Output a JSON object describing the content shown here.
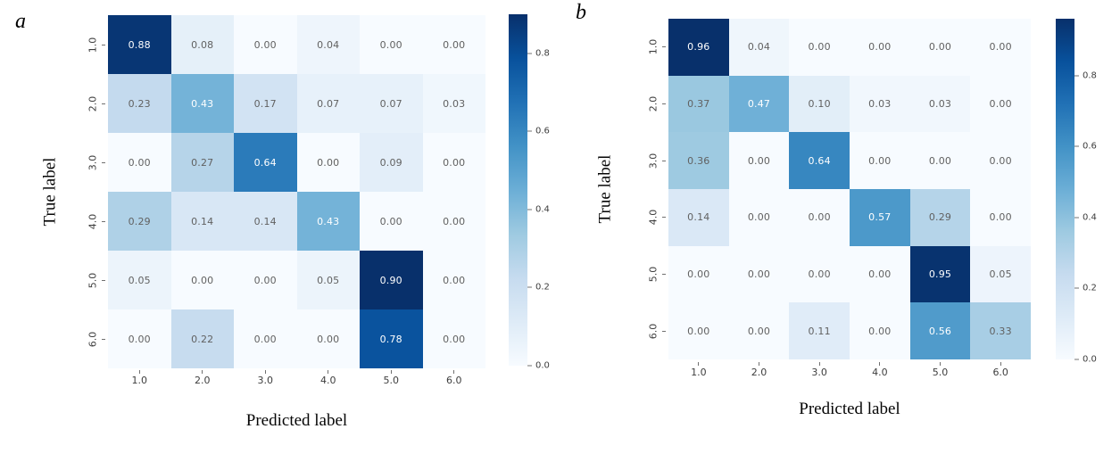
{
  "figure_title": "",
  "colors": {
    "cmap_name": "Blues",
    "cmap_stops": [
      "#f7fbff",
      "#deebf7",
      "#c6dbef",
      "#9ecae1",
      "#6baed6",
      "#4292c6",
      "#2171b5",
      "#08519c",
      "#08306b"
    ],
    "annotation_dark_text": "#616161",
    "annotation_light_text": "#ffffff",
    "tick_text": "#3d3d3d",
    "axis_title_text": "#050505"
  },
  "chart_data": [
    {
      "type": "heatmap",
      "panel_label": "a",
      "xlabel": "Predicted label",
      "ylabel": "True label",
      "x_tick_labels": [
        "1.0",
        "2.0",
        "3.0",
        "4.0",
        "5.0",
        "6.0"
      ],
      "y_tick_labels": [
        "1.0",
        "2.0",
        "3.0",
        "4.0",
        "5.0",
        "6.0"
      ],
      "matrix": [
        [
          0.88,
          0.08,
          0.0,
          0.04,
          0.0,
          0.0
        ],
        [
          0.23,
          0.43,
          0.17,
          0.07,
          0.07,
          0.03
        ],
        [
          0.0,
          0.27,
          0.64,
          0.0,
          0.09,
          0.0
        ],
        [
          0.29,
          0.14,
          0.14,
          0.43,
          0.0,
          0.0
        ],
        [
          0.05,
          0.0,
          0.0,
          0.05,
          0.9,
          0.0
        ],
        [
          0.0,
          0.22,
          0.0,
          0.0,
          0.78,
          0.0
        ]
      ],
      "vmin": 0.0,
      "vmax": 0.9,
      "colorbar_ticks": [
        0.8,
        0.6,
        0.4,
        0.2,
        0.0
      ],
      "legend_position": "right-colorbar",
      "grid": false
    },
    {
      "type": "heatmap",
      "panel_label": "b",
      "xlabel": "Predicted label",
      "ylabel": "True label",
      "x_tick_labels": [
        "1.0",
        "2.0",
        "3.0",
        "4.0",
        "5.0",
        "6.0"
      ],
      "y_tick_labels": [
        "1.0",
        "2.0",
        "3.0",
        "4.0",
        "5.0",
        "6.0"
      ],
      "matrix": [
        [
          0.96,
          0.04,
          0.0,
          0.0,
          0.0,
          0.0
        ],
        [
          0.37,
          0.47,
          0.1,
          0.03,
          0.03,
          0.0
        ],
        [
          0.36,
          0.0,
          0.64,
          0.0,
          0.0,
          0.0
        ],
        [
          0.14,
          0.0,
          0.0,
          0.57,
          0.29,
          0.0
        ],
        [
          0.0,
          0.0,
          0.0,
          0.0,
          0.95,
          0.05
        ],
        [
          0.0,
          0.0,
          0.11,
          0.0,
          0.56,
          0.33
        ]
      ],
      "vmin": 0.0,
      "vmax": 0.96,
      "colorbar_ticks": [
        0.8,
        0.6,
        0.4,
        0.2,
        0.0
      ],
      "legend_position": "right-colorbar",
      "grid": false
    }
  ]
}
